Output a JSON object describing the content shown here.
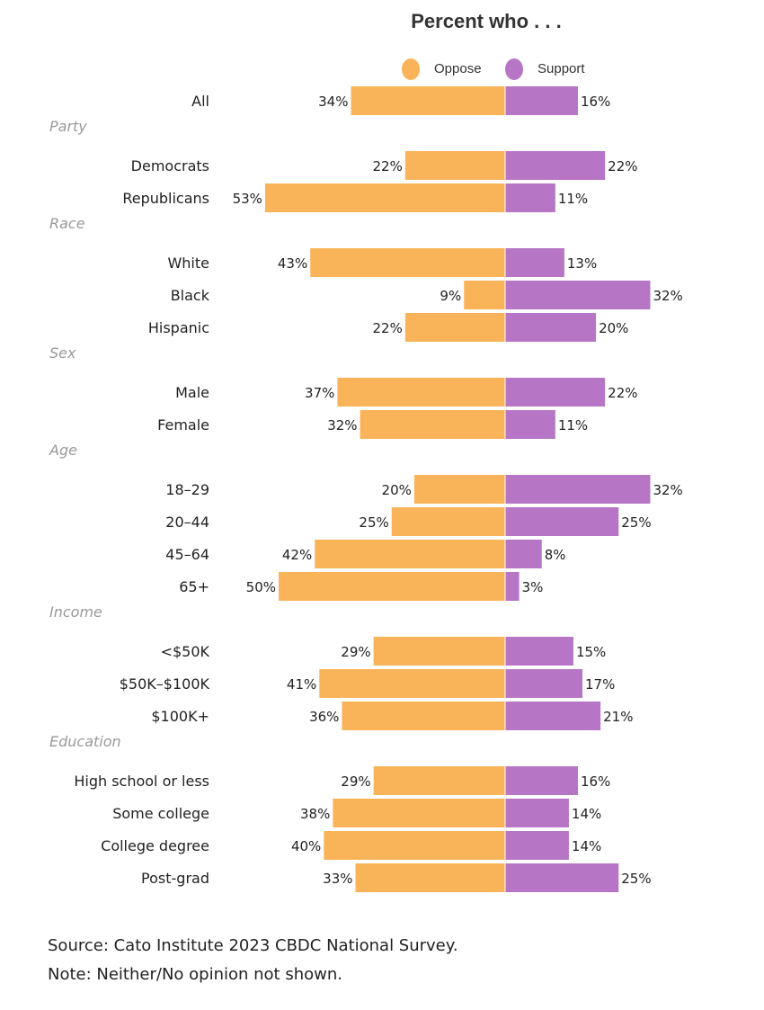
{
  "chart_data": {
    "type": "bar",
    "orientation": "horizontal-diverging",
    "title": "Percent who . . .",
    "legend": [
      {
        "name": "Oppose",
        "color": "#F9B459"
      },
      {
        "name": "Support",
        "color": "#B776C5"
      }
    ],
    "legend_position": "top",
    "unit": "%",
    "rows": [
      {
        "type": "category",
        "label": "All",
        "oppose": 34,
        "support": 16
      },
      {
        "type": "group",
        "label": "Party"
      },
      {
        "type": "category",
        "label": "Democrats",
        "oppose": 22,
        "support": 22
      },
      {
        "type": "category",
        "label": "Republicans",
        "oppose": 53,
        "support": 11
      },
      {
        "type": "group",
        "label": "Race"
      },
      {
        "type": "category",
        "label": "White",
        "oppose": 43,
        "support": 13
      },
      {
        "type": "category",
        "label": "Black",
        "oppose": 9,
        "support": 32
      },
      {
        "type": "category",
        "label": "Hispanic",
        "oppose": 22,
        "support": 20
      },
      {
        "type": "group",
        "label": "Sex"
      },
      {
        "type": "category",
        "label": "Male",
        "oppose": 37,
        "support": 22
      },
      {
        "type": "category",
        "label": "Female",
        "oppose": 32,
        "support": 11
      },
      {
        "type": "group",
        "label": "Age"
      },
      {
        "type": "category",
        "label": "18–29",
        "oppose": 20,
        "support": 32
      },
      {
        "type": "category",
        "label": "20–44",
        "oppose": 25,
        "support": 25
      },
      {
        "type": "category",
        "label": "45–64",
        "oppose": 42,
        "support": 8
      },
      {
        "type": "category",
        "label": "65+",
        "oppose": 50,
        "support": 3
      },
      {
        "type": "group",
        "label": "Income"
      },
      {
        "type": "category",
        "label": "<$50K",
        "oppose": 29,
        "support": 15
      },
      {
        "type": "category",
        "label": "$50K–$100K",
        "oppose": 41,
        "support": 17
      },
      {
        "type": "category",
        "label": "$100K+",
        "oppose": 36,
        "support": 21
      },
      {
        "type": "group",
        "label": "Education"
      },
      {
        "type": "category",
        "label": "High school or less",
        "oppose": 29,
        "support": 16
      },
      {
        "type": "category",
        "label": "Some college",
        "oppose": 38,
        "support": 14
      },
      {
        "type": "category",
        "label": "College degree",
        "oppose": 40,
        "support": 14
      },
      {
        "type": "category",
        "label": "Post-grad",
        "oppose": 33,
        "support": 25
      }
    ]
  },
  "notes": {
    "source": "Source: Cato Institute 2023 CBDC National Survey.",
    "note": "Note: Neither/No opinion not shown."
  }
}
